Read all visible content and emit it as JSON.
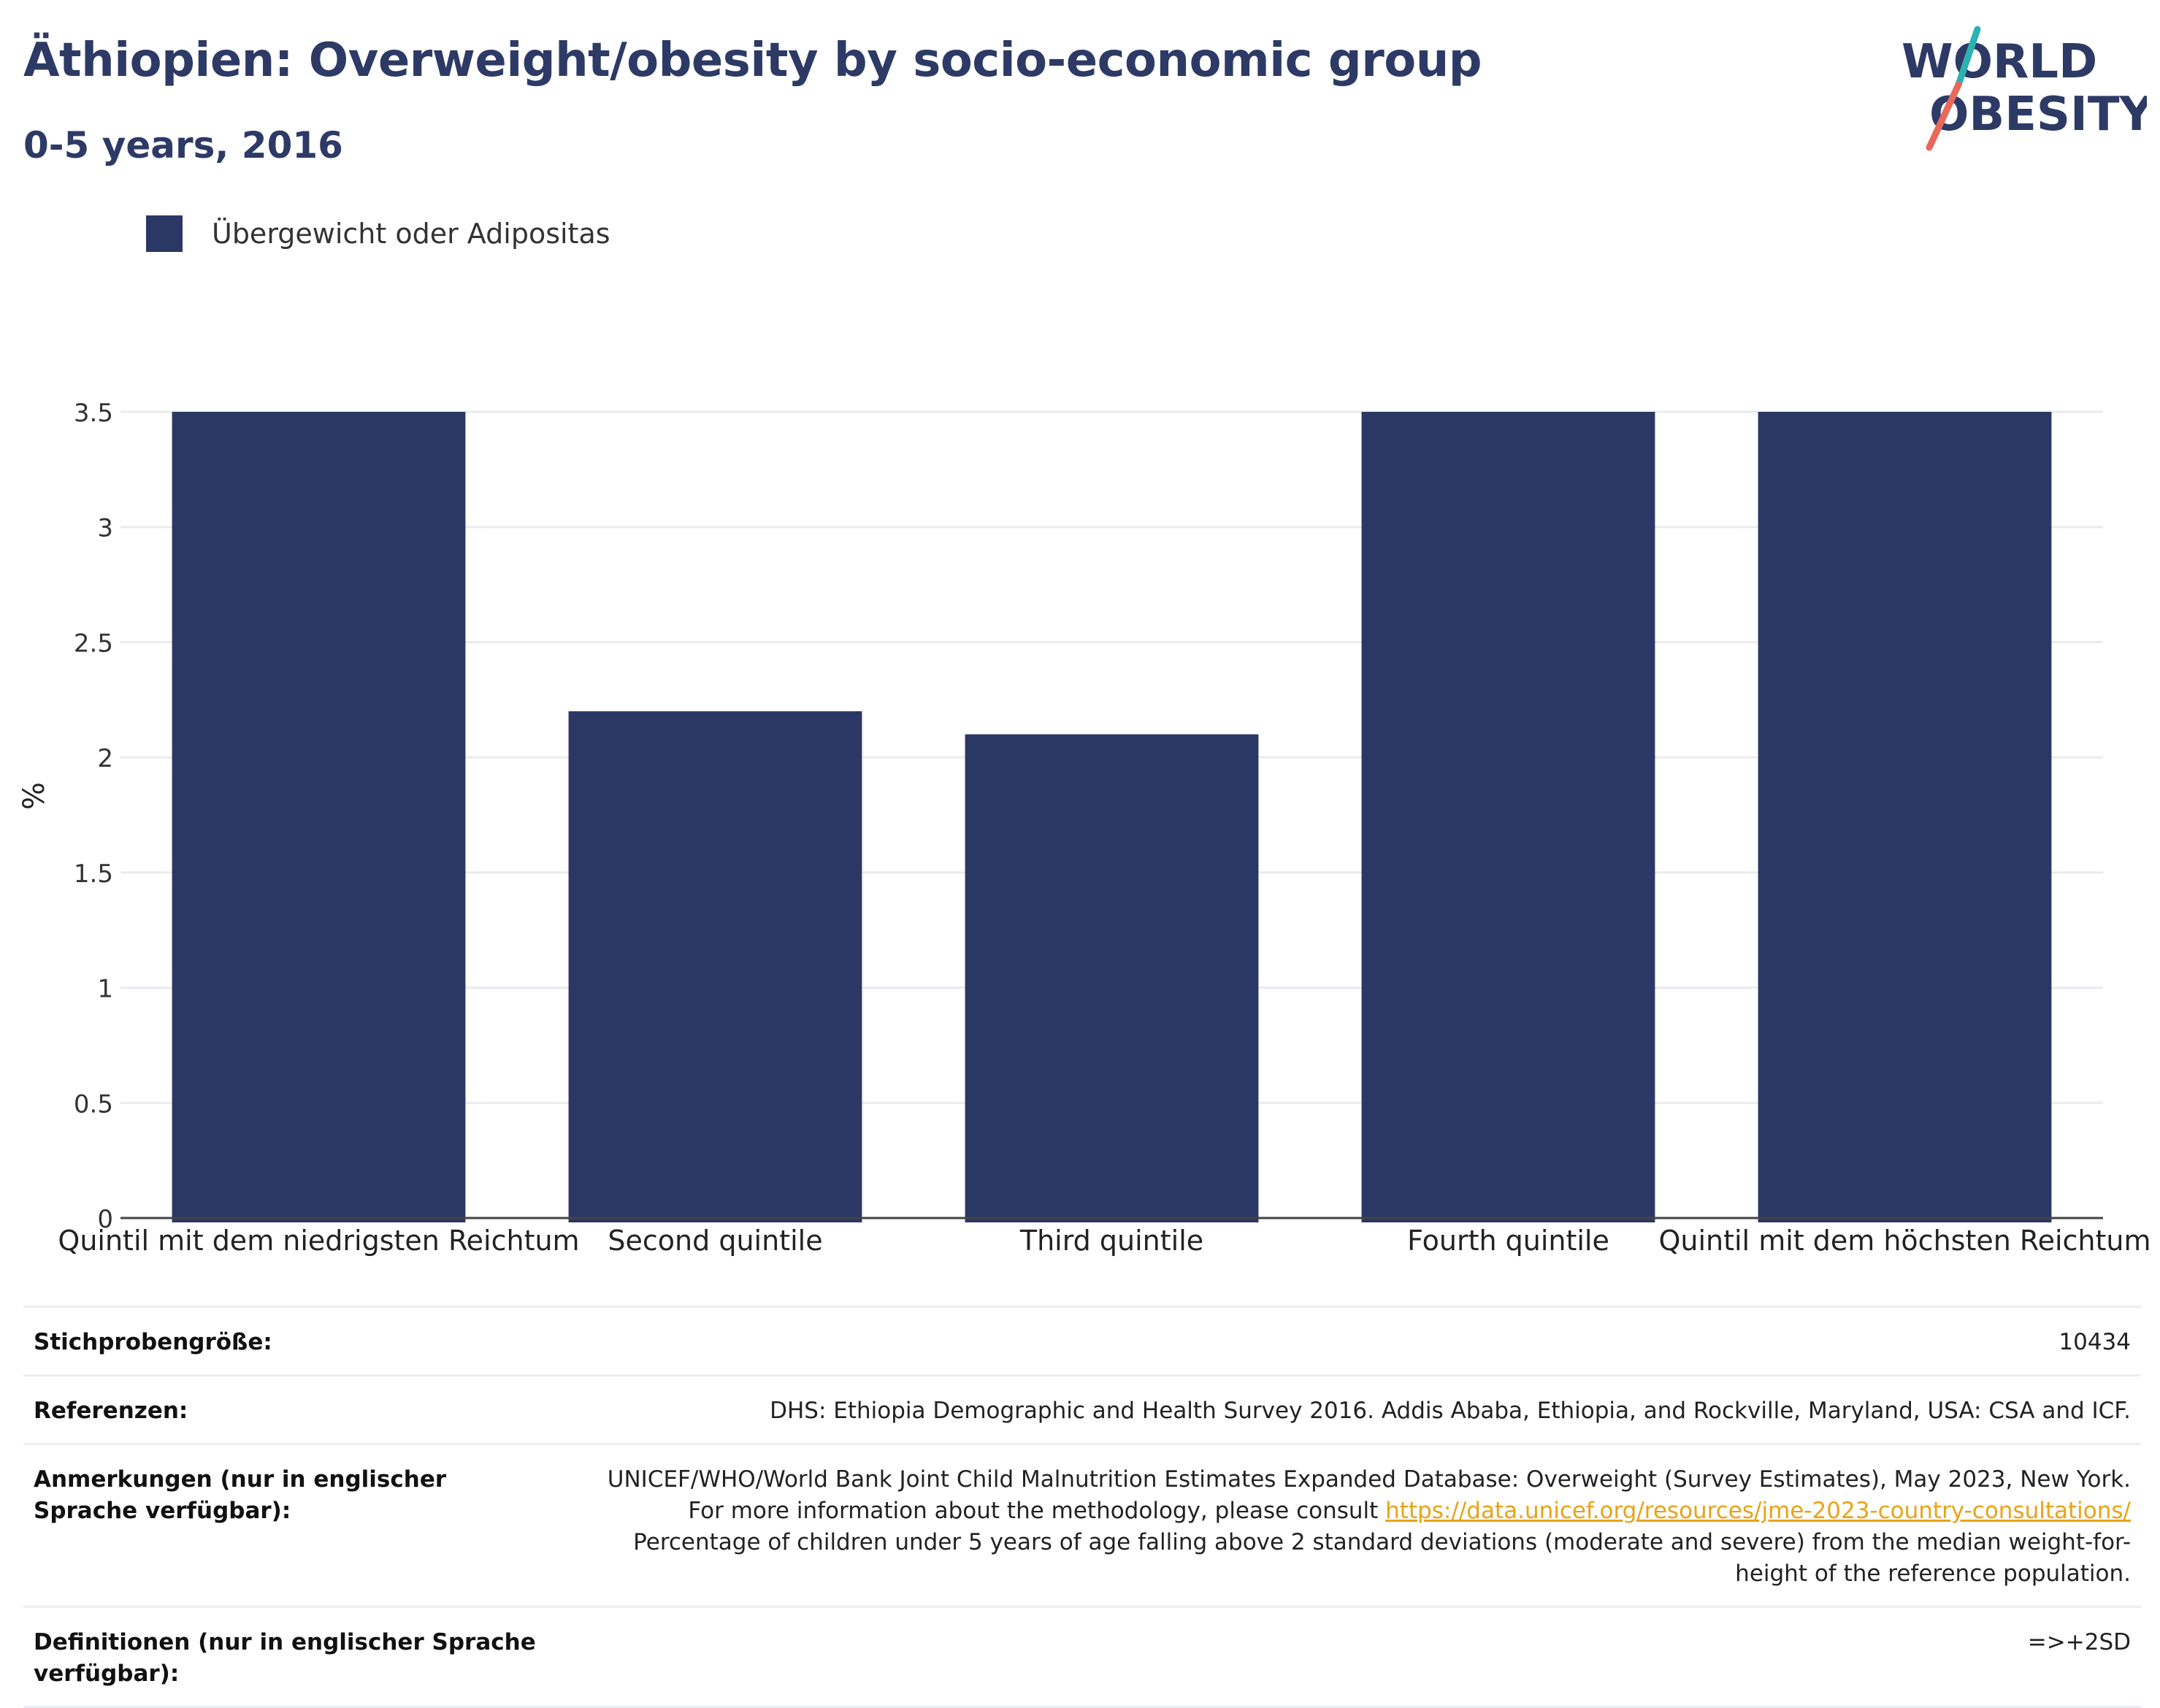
{
  "header": {
    "title": "Äthiopien: Overweight/obesity by socio-economic group",
    "subtitle": "0-5 years, 2016",
    "logo_line1": "WORLD",
    "logo_line2": "OBESITY"
  },
  "colors": {
    "title": "#2d3a66",
    "bar": "#2b3764",
    "logo_text": "#2d3a66",
    "logo_slash_top": "#2bb3b1",
    "logo_slash_bottom": "#e8685a",
    "link": "#e8a317",
    "grid": "#e9ebf1"
  },
  "chart_data": {
    "type": "bar",
    "categories": [
      "Quintil mit dem niedrigsten Reichtum",
      "Second quintile",
      "Third quintile",
      "Fourth quintile",
      "Quintil mit dem höchsten Reichtum"
    ],
    "series": [
      {
        "name": "Übergewicht oder Adipositas",
        "values": [
          3.5,
          2.2,
          2.1,
          3.5,
          3.5
        ]
      }
    ],
    "ylabel": "%",
    "ylim": [
      0,
      3.5
    ],
    "yticks": [
      0,
      0.5,
      1,
      1.5,
      2,
      2.5,
      3,
      3.5
    ],
    "ytick_labels": [
      "0",
      "0.5",
      "1",
      "1.5",
      "2",
      "2.5",
      "3",
      "3.5"
    ],
    "grid": true,
    "legend_position": "top-left"
  },
  "meta": {
    "sample_label": "Stichprobengröße:",
    "sample_value": "10434",
    "ref_label": "Referenzen:",
    "ref_value": "DHS: Ethiopia Demographic and Health Survey 2016. Addis Ababa, Ethiopia, and Rockville, Maryland, USA: CSA and ICF.",
    "notes_label": "Anmerkungen (nur in englischer Sprache verfügbar):",
    "notes_text1": "UNICEF/WHO/World Bank Joint Child Malnutrition Estimates Expanded Database: Overweight (Survey Estimates), May 2023, New York. For more information about the methodology, please consult ",
    "notes_link": "https://data.unicef.org/resources/jme-2023-country-consultations/",
    "notes_text2": "Percentage of children under 5 years of age falling above 2 standard deviations (moderate and severe) from the median weight-for-height of the reference population.",
    "def_label": "Definitionen (nur in englischer Sprache verfügbar):",
    "def_value": "=>+2SD"
  }
}
